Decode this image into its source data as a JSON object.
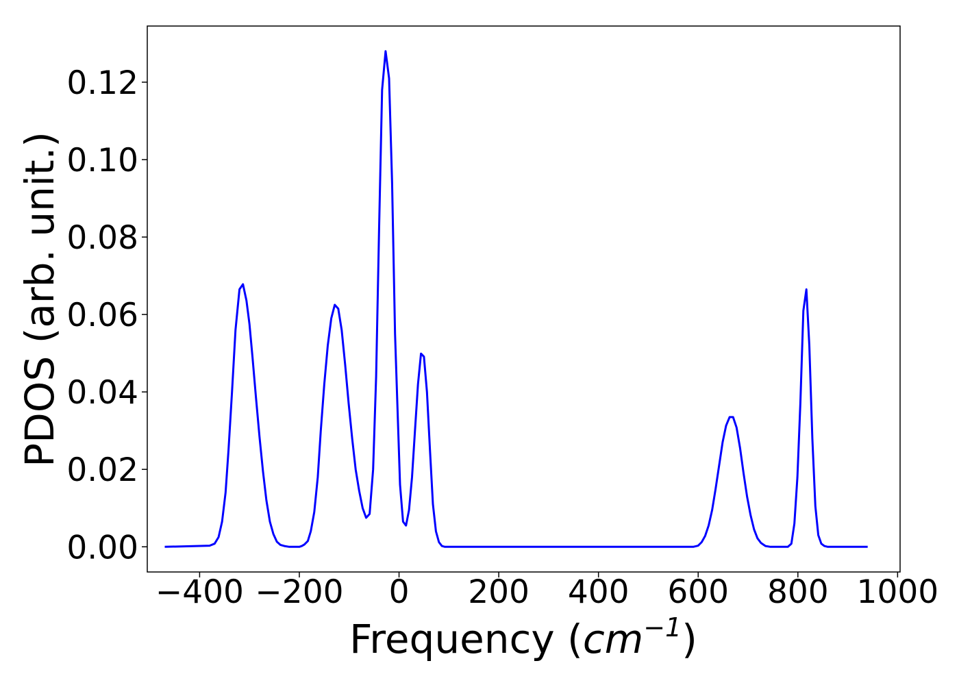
{
  "chart_data": {
    "type": "line",
    "title": "",
    "xlabel_prefix": "Frequency (",
    "xlabel_unit_base": "cm",
    "xlabel_unit_exp": "−1",
    "xlabel_suffix": ")",
    "ylabel": "PDOS (arb. unit.)",
    "xlim": [
      -505,
      1005
    ],
    "ylim": [
      -0.0065,
      0.1345
    ],
    "x_ticks": [
      -400,
      -200,
      0,
      200,
      400,
      600,
      800,
      1000
    ],
    "x_tick_labels": [
      "−400",
      "−200",
      "0",
      "200",
      "400",
      "600",
      "800",
      "1000"
    ],
    "y_ticks": [
      0.0,
      0.02,
      0.04,
      0.06,
      0.08,
      0.1,
      0.12
    ],
    "y_tick_labels": [
      "0.00",
      "0.02",
      "0.04",
      "0.06",
      "0.08",
      "0.10",
      "0.12"
    ],
    "grid": false,
    "line_color": "#0000ff",
    "series": [
      {
        "x": [
          -470,
          -380,
          -370,
          -362,
          -355,
          -348,
          -342,
          -335,
          -328,
          -320,
          -313,
          -306,
          -300,
          -294,
          -287,
          -280,
          -273,
          -266,
          -259,
          -252,
          -245,
          -238,
          -230,
          -220,
          -200,
          -195,
          -190,
          -183,
          -177,
          -170,
          -163,
          -157,
          -150,
          -143,
          -136,
          -129,
          -122,
          -115,
          -108,
          -101,
          -94,
          -87,
          -80,
          -73,
          -66,
          -59,
          -52,
          -46,
          -40,
          -34,
          -27,
          -20,
          -14,
          -8,
          2,
          8,
          14,
          20,
          26,
          32,
          38,
          44,
          50,
          56,
          62,
          68,
          74,
          80,
          86,
          92,
          100,
          110,
          120,
          590,
          600,
          607,
          614,
          621,
          628,
          635,
          642,
          649,
          656,
          663,
          670,
          677,
          684,
          691,
          698,
          705,
          712,
          719,
          726,
          735,
          745,
          780,
          787,
          793,
          799,
          805,
          811,
          817,
          823,
          829,
          835,
          841,
          847,
          853,
          860,
          870,
          940
        ],
        "y": [
          0.0,
          0.0003,
          0.0008,
          0.0025,
          0.0065,
          0.014,
          0.025,
          0.04,
          0.056,
          0.0665,
          0.0678,
          0.0636,
          0.0575,
          0.049,
          0.0385,
          0.0285,
          0.0195,
          0.012,
          0.0065,
          0.0033,
          0.0013,
          0.0005,
          0.0002,
          0.0,
          0.0,
          0.0002,
          0.0006,
          0.0015,
          0.004,
          0.009,
          0.018,
          0.03,
          0.042,
          0.052,
          0.059,
          0.0625,
          0.0615,
          0.056,
          0.047,
          0.037,
          0.028,
          0.02,
          0.0145,
          0.01,
          0.0075,
          0.0085,
          0.02,
          0.044,
          0.082,
          0.118,
          0.128,
          0.121,
          0.094,
          0.055,
          0.016,
          0.0065,
          0.0055,
          0.0095,
          0.018,
          0.03,
          0.042,
          0.0499,
          0.0491,
          0.04,
          0.025,
          0.011,
          0.004,
          0.0012,
          0.0002,
          0.0,
          0.0,
          0.0,
          0.0,
          0.0,
          0.0003,
          0.0012,
          0.0028,
          0.0055,
          0.0095,
          0.015,
          0.021,
          0.027,
          0.0313,
          0.0335,
          0.0335,
          0.0308,
          0.0255,
          0.019,
          0.013,
          0.0082,
          0.0045,
          0.0022,
          0.001,
          0.0002,
          0.0,
          0.0,
          0.0008,
          0.006,
          0.018,
          0.037,
          0.061,
          0.0665,
          0.052,
          0.028,
          0.0105,
          0.003,
          0.0008,
          0.0002,
          0.0,
          0.0,
          0.0
        ]
      }
    ]
  }
}
